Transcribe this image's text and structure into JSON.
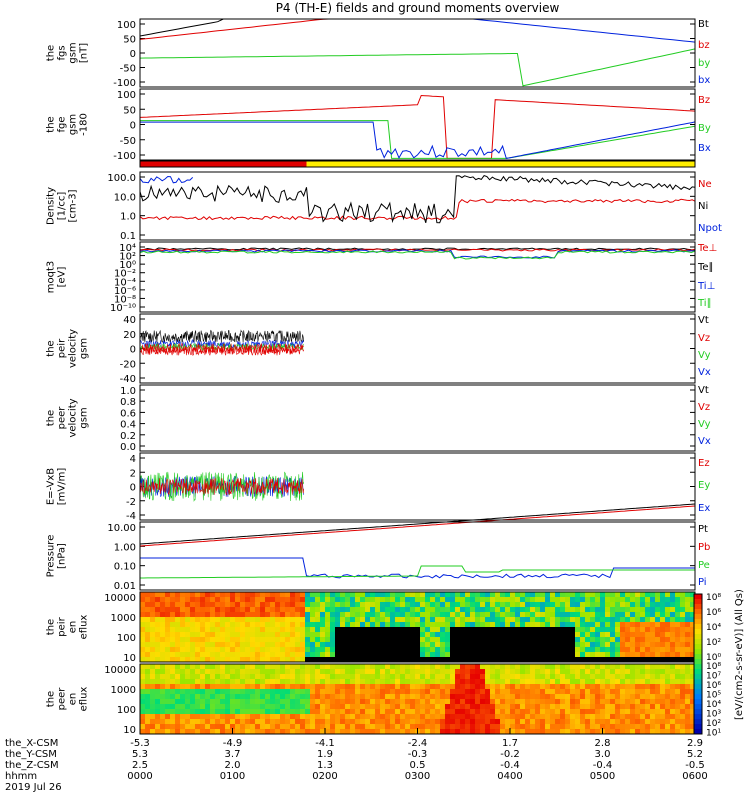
{
  "title": "P4 (TH-E) fields and ground moments overview",
  "colors": {
    "black": "#000000",
    "red": "#e00000",
    "green": "#22cc22",
    "blue": "#0022dd",
    "yellow": "#ffee00"
  },
  "colorbar": {
    "label": "[eV/(cm2-s-sr-eV)] (All Qs)",
    "ticks": [
      "10⁸",
      "10⁷",
      "10⁶",
      "10⁵",
      "10⁴",
      "10³",
      "10²",
      "10¹"
    ],
    "upper_ticks": [
      "10⁸",
      "10⁶",
      "10⁴",
      "10²",
      "10⁰"
    ]
  },
  "time_axis": {
    "rows": [
      {
        "label": "the_X-CSM",
        "values": [
          "-5.3",
          "-4.9",
          "-4.1",
          "-2.4",
          "1.7",
          "2.8",
          "2.9"
        ]
      },
      {
        "label": "the_Y-CSM",
        "values": [
          "5.3",
          "3.7",
          "1.9",
          "-0.3",
          "-0.2",
          "3.0",
          "5.2"
        ]
      },
      {
        "label": "the_Z-CSM",
        "values": [
          "2.5",
          "2.0",
          "1.3",
          "0.5",
          "-0.4",
          "-0.4",
          "-0.5"
        ]
      },
      {
        "label": "hhmm",
        "values": [
          "0000",
          "0100",
          "0200",
          "0300",
          "0400",
          "0500",
          "0600"
        ]
      }
    ],
    "date": "2019 Jul 26"
  },
  "chart_data": [
    {
      "type": "line",
      "ylabel": "the fgs gsm [nT]",
      "ylim": [
        -100,
        100
      ],
      "yticks": [
        "100",
        "50",
        "0",
        "-50",
        "-100"
      ],
      "legend": [
        {
          "name": "Bt",
          "color": "#000000"
        },
        {
          "name": "bz",
          "color": "#e00000"
        },
        {
          "name": "by",
          "color": "#22cc22"
        },
        {
          "name": "bx",
          "color": "#0022dd"
        }
      ]
    },
    {
      "type": "line",
      "ylabel": "the fge gsm -180 [nT]",
      "ylim": [
        -125,
        100
      ],
      "yticks": [
        "100",
        "50",
        "0",
        "-50",
        "-100"
      ],
      "legend": [
        {
          "name": "Bz",
          "color": "#e00000"
        },
        {
          "name": "By",
          "color": "#22cc22"
        },
        {
          "name": "Bx",
          "color": "#0022dd"
        }
      ]
    },
    {
      "type": "line",
      "ylabel": "Density [1/cc] [cm-3]",
      "yscale": "log",
      "yticks": [
        "100.0",
        "10.0",
        "1.0",
        "0.1"
      ],
      "legend": [
        {
          "name": "Ne",
          "color": "#e00000"
        },
        {
          "name": "Ni",
          "color": "#000000"
        },
        {
          "name": "Npot",
          "color": "#0022dd"
        }
      ]
    },
    {
      "type": "line",
      "ylabel": "moqt3 [eV]",
      "yscale": "log",
      "yticks": [
        "10⁴",
        "10²",
        "10⁰",
        "10⁻²",
        "10⁻⁴",
        "10⁻⁶",
        "10⁻⁸",
        "10⁻¹⁰"
      ],
      "legend": [
        {
          "name": "Te⊥",
          "color": "#e00000"
        },
        {
          "name": "Te∥",
          "color": "#000000"
        },
        {
          "name": "Ti⊥",
          "color": "#0022dd"
        },
        {
          "name": "Ti∥",
          "color": "#22cc22"
        }
      ]
    },
    {
      "type": "line",
      "ylabel": "the peir velocity gsm [km/s] (All Qs)",
      "ylim": [
        -40,
        40
      ],
      "yticks": [
        "40",
        "20",
        "0",
        "-20",
        "-40"
      ],
      "legend": [
        {
          "name": "Vt",
          "color": "#000000"
        },
        {
          "name": "Vz",
          "color": "#e00000"
        },
        {
          "name": "Vy",
          "color": "#22cc22"
        },
        {
          "name": "Vx",
          "color": "#0022dd"
        }
      ]
    },
    {
      "type": "line",
      "ylabel": "the peer velocity gsm [km/s] (All Qs)",
      "ylim": [
        0,
        1
      ],
      "yticks": [
        "1.0",
        "0.8",
        "0.6",
        "0.4",
        "0.2",
        "0.0"
      ],
      "legend": [
        {
          "name": "Vt",
          "color": "#000000"
        },
        {
          "name": "Vz",
          "color": "#e00000"
        },
        {
          "name": "Vy",
          "color": "#22cc22"
        },
        {
          "name": "Vx",
          "color": "#0022dd"
        }
      ]
    },
    {
      "type": "line",
      "ylabel": "E=-VxB [mV/m]",
      "ylim": [
        -4,
        4
      ],
      "yticks": [
        "4",
        "2",
        "0",
        "-2",
        "-4"
      ],
      "legend": [
        {
          "name": "Ez",
          "color": "#e00000"
        },
        {
          "name": "Ey",
          "color": "#22cc22"
        },
        {
          "name": "Ex",
          "color": "#0022dd"
        }
      ]
    },
    {
      "type": "line",
      "ylabel": "Pressure [nPa]",
      "yscale": "log",
      "yticks": [
        "10.00",
        "1.00",
        "0.10",
        "0.01"
      ],
      "legend": [
        {
          "name": "Pt",
          "color": "#000000"
        },
        {
          "name": "Pb",
          "color": "#e00000"
        },
        {
          "name": "Pe",
          "color": "#22cc22"
        },
        {
          "name": "Pi",
          "color": "#0022dd"
        }
      ]
    },
    {
      "type": "heatmap",
      "ylabel": "the peir en eflux eV [cm2-s-sr-eV]",
      "yscale": "log",
      "yticks": [
        "10000",
        "1000",
        "100",
        "10"
      ]
    },
    {
      "type": "heatmap",
      "ylabel": "the peer en eflux eV [cm2-s-sr-eV]",
      "yscale": "log",
      "yticks": [
        "10000",
        "1000",
        "100",
        "10"
      ]
    }
  ]
}
